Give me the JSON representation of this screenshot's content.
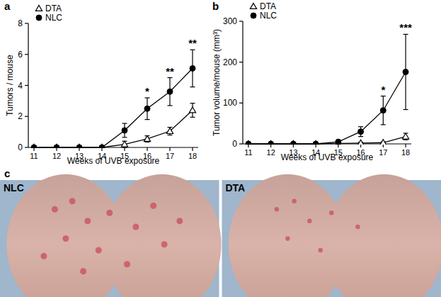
{
  "chart_data": [
    {
      "type": "line",
      "title": "a",
      "x_label": "Weeks of UVB exposure",
      "y_label": "Tumors / mouse",
      "x": [
        11,
        12,
        13,
        14,
        15,
        16,
        17,
        18
      ],
      "xlim": [
        10.75,
        18.25
      ],
      "xticks": [
        11,
        12,
        13,
        14,
        15,
        16,
        17,
        18
      ],
      "ylim": [
        0,
        8
      ],
      "yticks": [
        0,
        2,
        4,
        6,
        8
      ],
      "legend": "top-left",
      "grid": false,
      "series": [
        {
          "name": "DTA",
          "color": "#000000",
          "marker": "triangle_open",
          "line_style": "solid",
          "values": [
            0,
            0,
            0,
            0,
            0.2,
            0.55,
            1.05,
            2.4
          ],
          "errors": [
            0,
            0,
            0,
            0,
            0.2,
            0.2,
            0.25,
            0.45
          ]
        },
        {
          "name": "NLC",
          "color": "#000000",
          "marker": "circle",
          "line_style": "solid",
          "values": [
            0,
            0,
            0,
            0,
            1.1,
            2.5,
            3.6,
            5.1
          ],
          "errors": [
            0,
            0,
            0,
            0,
            0.45,
            0.7,
            0.9,
            1.2
          ]
        }
      ],
      "annotations": [
        {
          "x": 16,
          "text": "*"
        },
        {
          "x": 17,
          "text": "**"
        },
        {
          "x": 18,
          "text": "**"
        }
      ]
    },
    {
      "type": "line",
      "title": "b",
      "x_label": "Weeks of UVB exposure",
      "y_label": "Tumor volume/mouse (mm³)",
      "x": [
        11,
        12,
        13,
        14,
        15,
        16,
        17,
        18
      ],
      "xlim": [
        10.75,
        18.25
      ],
      "xticks": [
        11,
        12,
        13,
        14,
        15,
        16,
        17,
        18
      ],
      "ylim": [
        0,
        300
      ],
      "yticks": [
        0,
        100,
        200,
        300
      ],
      "legend": "top-left",
      "grid": false,
      "series": [
        {
          "name": "DTA",
          "color": "#000000",
          "marker": "triangle_open",
          "line_style": "solid",
          "values": [
            0,
            0,
            0,
            0,
            1,
            2,
            3,
            18
          ],
          "errors": [
            0,
            0,
            0,
            0,
            1,
            2,
            2,
            8
          ]
        },
        {
          "name": "NLC",
          "color": "#000000",
          "marker": "circle",
          "line_style": "solid",
          "values": [
            0,
            0,
            0,
            0,
            5,
            30,
            82,
            176
          ],
          "errors": [
            0,
            0,
            0,
            0,
            3,
            12,
            35,
            92
          ]
        }
      ],
      "annotations": [
        {
          "x": 17,
          "text": "*"
        },
        {
          "x": 18,
          "text": "***"
        }
      ]
    }
  ],
  "photo_panel": {
    "title": "c",
    "images": [
      {
        "label": "NLC"
      },
      {
        "label": "DTA"
      }
    ]
  }
}
